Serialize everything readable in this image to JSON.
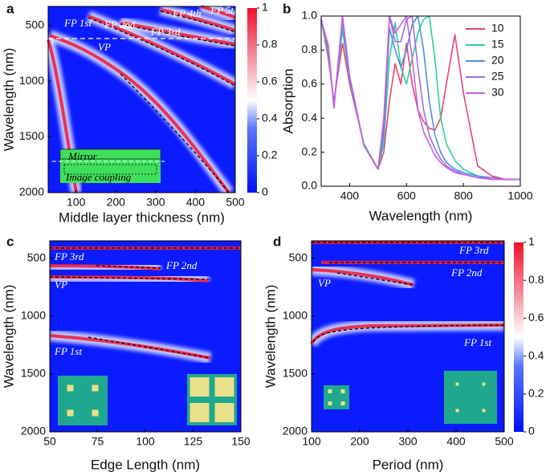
{
  "chart_data": [
    {
      "type": "heatmap",
      "panel_label": "a",
      "xlabel": "Middle layer thickness (nm)",
      "ylabel": "Wavelength (nm)",
      "xlim": [
        30,
        500
      ],
      "xticks": [
        100,
        200,
        300,
        400,
        500
      ],
      "ylim": [
        2000,
        330
      ],
      "yticks": [
        500,
        1000,
        1500,
        2000
      ],
      "colorbar": {
        "clim": [
          0,
          1
        ],
        "ticks": [
          0,
          0.2,
          0.4,
          0.6,
          0.8,
          1
        ]
      },
      "annotations": [
        "FP 1st",
        "FP 2nd",
        "FP 3rd",
        "FP 4th",
        "FP 5th",
        "VP",
        "Mirror",
        "Image coupling"
      ]
    },
    {
      "type": "line",
      "panel_label": "b",
      "xlabel": "Wavelength (nm)",
      "ylabel": "Absorption",
      "xlim": [
        300,
        1000
      ],
      "xticks": [
        400,
        600,
        800,
        1000
      ],
      "ylim": [
        0,
        1
      ],
      "yticks": [
        {
          "value": 0,
          "label": "0.0"
        },
        {
          "value": 0.2,
          "label": "0.2"
        },
        {
          "value": 0.4,
          "label": "0.4"
        },
        {
          "value": 0.6,
          "label": "0.6"
        },
        {
          "value": 0.8,
          "label": "0.8"
        },
        {
          "value": 1,
          "label": "1.0"
        }
      ],
      "x": [
        300,
        325,
        345,
        375,
        400,
        450,
        500,
        520,
        540,
        560,
        580,
        600,
        620,
        640,
        660,
        680,
        700,
        720,
        740,
        770,
        800,
        850,
        900,
        950,
        1000
      ],
      "series": [
        {
          "name": "10",
          "color": "#e8466e",
          "values": [
            0.98,
            0.75,
            0.5,
            0.84,
            0.6,
            0.25,
            0.1,
            0.2,
            0.5,
            0.72,
            0.6,
            0.84,
            0.6,
            0.45,
            0.38,
            0.34,
            0.33,
            0.4,
            0.6,
            0.89,
            0.55,
            0.12,
            0.06,
            0.04,
            0.04
          ]
        },
        {
          "name": "15",
          "color": "#2fcf9c",
          "values": [
            0.98,
            0.78,
            0.48,
            0.92,
            0.62,
            0.25,
            0.1,
            0.25,
            0.75,
            0.96,
            0.7,
            0.6,
            0.75,
            0.9,
            0.98,
            1.0,
            0.75,
            0.4,
            0.25,
            0.15,
            0.1,
            0.06,
            0.05,
            0.04,
            0.04
          ]
        },
        {
          "name": "20",
          "color": "#4f8fe3",
          "values": [
            0.98,
            0.8,
            0.47,
            0.97,
            0.63,
            0.24,
            0.1,
            0.3,
            0.93,
            0.8,
            0.7,
            0.8,
            0.95,
            1.0,
            0.8,
            0.5,
            0.3,
            0.2,
            0.14,
            0.1,
            0.08,
            0.06,
            0.05,
            0.04,
            0.04
          ]
        },
        {
          "name": "25",
          "color": "#9c6fe2",
          "values": [
            0.98,
            0.82,
            0.46,
            1.0,
            0.64,
            0.24,
            0.1,
            0.35,
            1.0,
            0.85,
            0.85,
            0.98,
            1.0,
            0.7,
            0.45,
            0.3,
            0.22,
            0.16,
            0.12,
            0.09,
            0.07,
            0.05,
            0.05,
            0.04,
            0.04
          ]
        },
        {
          "name": "30",
          "color": "#c65fe3",
          "values": [
            0.98,
            0.83,
            0.46,
            1.0,
            0.65,
            0.24,
            0.1,
            0.4,
            1.0,
            0.9,
            0.95,
            1.0,
            0.75,
            0.45,
            0.32,
            0.25,
            0.18,
            0.14,
            0.11,
            0.08,
            0.07,
            0.05,
            0.04,
            0.04,
            0.04
          ]
        }
      ]
    },
    {
      "type": "heatmap",
      "panel_label": "c",
      "xlabel": "Edge Length (nm)",
      "ylabel": "Wavelength (nm)",
      "xlim": [
        50,
        150
      ],
      "xticks": [
        50,
        75,
        100,
        125,
        150
      ],
      "ylim": [
        2000,
        350
      ],
      "yticks": [
        500,
        1000,
        1500,
        2000
      ],
      "annotations": [
        "FP 3rd",
        "FP 2nd",
        "VP",
        "FP 1st"
      ]
    },
    {
      "type": "heatmap",
      "panel_label": "d",
      "xlabel": "Period (nm)",
      "ylabel": "Wavelength (nm)",
      "xlim": [
        100,
        500
      ],
      "xticks": [
        100,
        200,
        300,
        400,
        500
      ],
      "ylim": [
        2000,
        350
      ],
      "yticks": [
        500,
        1000,
        1500,
        2000
      ],
      "colorbar": {
        "clim": [
          0,
          1
        ],
        "ticks": [
          0,
          0.2,
          0.4,
          0.6,
          0.8,
          1
        ]
      },
      "annotations": [
        "FP 3rd",
        "FP 2nd",
        "VP",
        "FP 1st"
      ]
    }
  ]
}
